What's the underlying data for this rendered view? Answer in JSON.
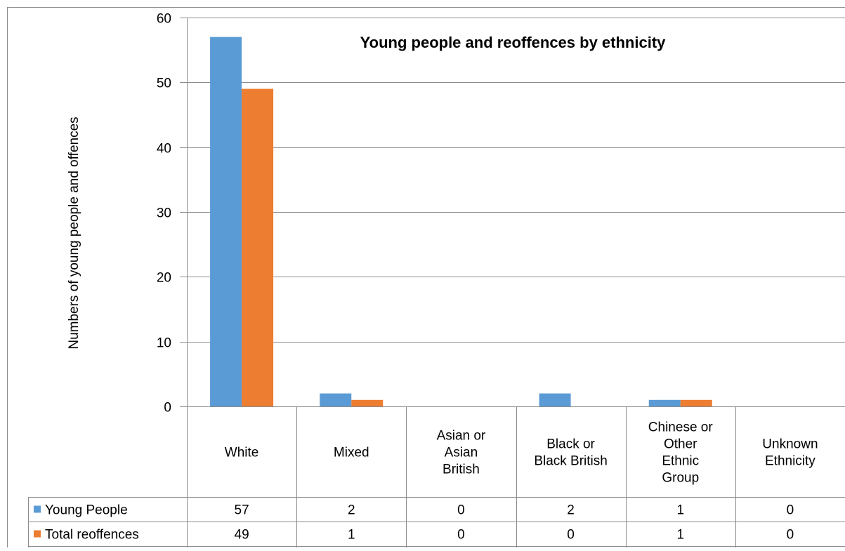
{
  "chart_data": {
    "type": "bar",
    "title": "Young people and reoffences by ethnicity",
    "xlabel": "",
    "ylabel": "Numbers of young people and offences",
    "ylim": [
      0,
      60
    ],
    "yticks": [
      0,
      10,
      20,
      30,
      40,
      50,
      60
    ],
    "grid": true,
    "legend": "data-table-left",
    "categories": [
      [
        "White"
      ],
      [
        "Mixed"
      ],
      [
        "Asian or",
        "Asian",
        "British"
      ],
      [
        "Black or",
        "Black British"
      ],
      [
        "Chinese or",
        "Other",
        "Ethnic",
        "Group"
      ],
      [
        "Unknown",
        "Ethnicity"
      ]
    ],
    "series": [
      {
        "name": "Young People",
        "color": "#5b9bd5",
        "values": [
          57,
          2,
          0,
          2,
          1,
          0
        ]
      },
      {
        "name": "Total reoffences",
        "color": "#ed7d31",
        "values": [
          49,
          1,
          0,
          0,
          1,
          0
        ]
      }
    ]
  }
}
